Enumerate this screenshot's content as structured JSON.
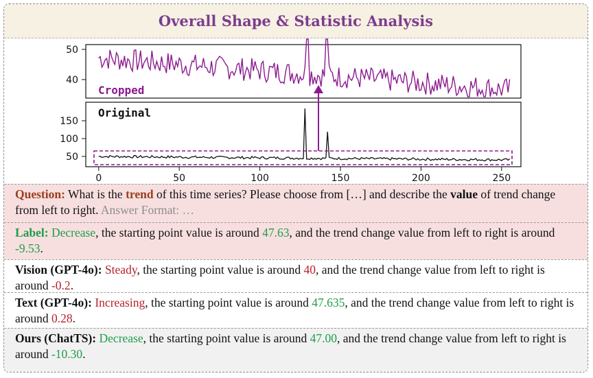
{
  "title": "Overall Shape & Statistic Analysis",
  "chart_data": [
    {
      "type": "line",
      "label": "Cropped",
      "ylim": [
        36,
        52
      ],
      "y_ticks": [
        40,
        50
      ],
      "series_color": "#8b1a8f",
      "description_values": {
        "start": 48,
        "end": 38.5,
        "spikes_at": [
          130,
          142
        ]
      }
    },
    {
      "type": "line",
      "label": "Original",
      "xlim": [
        -8,
        262
      ],
      "ylim": [
        20,
        195
      ],
      "x_ticks": [
        0,
        50,
        100,
        150,
        200,
        250
      ],
      "y_ticks": [
        50,
        100,
        150
      ],
      "spikes": [
        {
          "x": 128,
          "y": 178
        },
        {
          "x": 142,
          "y": 115
        }
      ],
      "series_color": "#111111"
    }
  ],
  "texts": {
    "question": {
      "lead": "Question:",
      "p1": " What is the ",
      "trend": "trend",
      "p2": " of this time series? Please choose from […] and describe the ",
      "value": "value",
      "p3": " of trend change from left to right. ",
      "format": "Answer Format: …"
    },
    "label": {
      "lead": "Label:",
      "trend": " Decrease",
      "p1": ", the starting point value is around ",
      "start": "47.63",
      "p2": ", and the trend change value from left to right is around ",
      "change": "-9.53",
      "end": "."
    },
    "vision": {
      "lead": "Vision (GPT-4o):",
      "trend": " Steady",
      "p1": ", the starting point value is around ",
      "start": "40",
      "p2": ", and the trend change value from left to right is around ",
      "change": "-0.2",
      "end": "."
    },
    "text": {
      "lead": "Text (GPT-4o):",
      "trend": " Increasing",
      "p1": ", the starting point value is around ",
      "start": "47.635",
      "p2": ", and the trend change value from left to right is around ",
      "change": "0.28",
      "end": "."
    },
    "ours": {
      "lead": "Ours (ChatTS):",
      "trend": " Decrease",
      "p1": ", the starting point value is around ",
      "start": "47.00",
      "p2": ", and the trend change value from left to right is around ",
      "change": "-10.30",
      "end": "."
    }
  }
}
